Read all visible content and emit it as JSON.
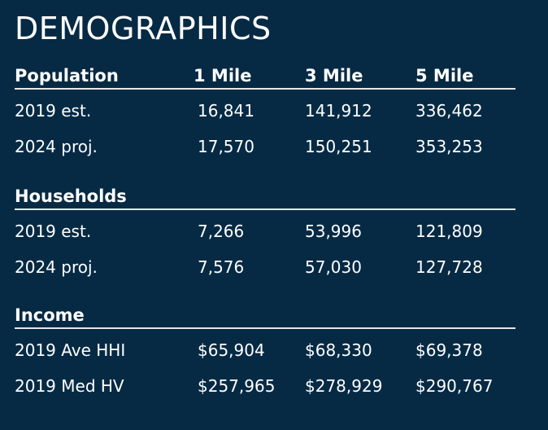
{
  "title": "DEMOGRAPHICS",
  "sections": [
    {
      "heading": "Population",
      "columns": [
        "1 Mile",
        "3 Mile",
        "5 Mile"
      ],
      "rows": [
        {
          "label": "2019 est.",
          "values": [
            "16,841",
            "141,912",
            "336,462"
          ]
        },
        {
          "label": "2024 proj.",
          "values": [
            "17,570",
            "150,251",
            "353,253"
          ]
        }
      ]
    },
    {
      "heading": "Households",
      "rows": [
        {
          "label": "2019 est.",
          "values": [
            "7,266",
            "53,996",
            "121,809"
          ]
        },
        {
          "label": "2024 proj.",
          "values": [
            "7,576",
            "57,030",
            "127,728"
          ]
        }
      ]
    },
    {
      "heading": "Income",
      "rows": [
        {
          "label": "2019 Ave HHI",
          "values": [
            "$65,904",
            "$68,330",
            "$69,378"
          ]
        },
        {
          "label": "2019 Med HV",
          "values": [
            "$257,965",
            "$278,929",
            "$290,767"
          ]
        }
      ]
    }
  ]
}
